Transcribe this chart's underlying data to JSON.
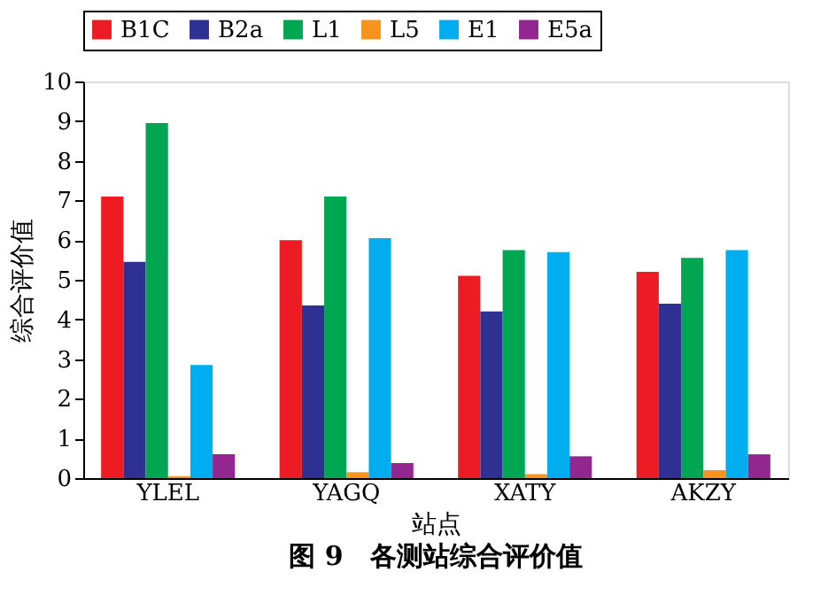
{
  "chart_data": {
    "type": "bar",
    "title": "图 9　各测站综合评价值",
    "xlabel": "站点",
    "ylabel": "综合评价值",
    "categories": [
      "YLEL",
      "YAGQ",
      "XATY",
      "AKZY"
    ],
    "series": [
      {
        "name": "B1C",
        "color": "#ed1c24",
        "values": [
          7.1,
          6.0,
          5.1,
          5.2
        ]
      },
      {
        "name": "B2a",
        "color": "#2e3192",
        "values": [
          5.45,
          4.35,
          4.2,
          4.4
        ]
      },
      {
        "name": "L1",
        "color": "#00a651",
        "values": [
          8.95,
          7.1,
          5.75,
          5.55
        ]
      },
      {
        "name": "L5",
        "color": "#f7941d",
        "values": [
          0.05,
          0.15,
          0.1,
          0.2
        ]
      },
      {
        "name": "E1",
        "color": "#00aeef",
        "values": [
          2.85,
          6.05,
          5.7,
          5.75
        ]
      },
      {
        "name": "E5a",
        "color": "#92278f",
        "values": [
          0.6,
          0.38,
          0.55,
          0.6
        ]
      }
    ],
    "ylim": [
      0,
      10
    ],
    "yticks": [
      0,
      1,
      2,
      3,
      4,
      5,
      6,
      7,
      8,
      9,
      10
    ],
    "grid": false,
    "legend": "top"
  }
}
